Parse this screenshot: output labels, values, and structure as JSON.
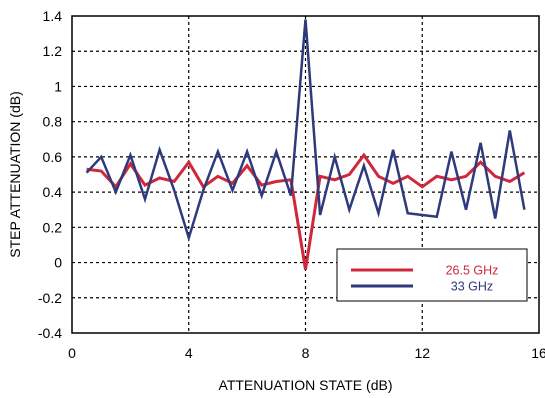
{
  "chart_data": {
    "type": "line",
    "xlabel": "ATTENUATION STATE (dB)",
    "ylabel": "STEP ATTENUATION (dB)",
    "xlim": [
      0,
      16
    ],
    "ylim": [
      -0.4,
      1.4
    ],
    "xticks": [
      0,
      4,
      8,
      12,
      16
    ],
    "yticks": [
      -0.4,
      -0.2,
      0,
      0.2,
      0.4,
      0.6,
      0.8,
      1,
      1.2,
      1.4
    ],
    "grid": true,
    "legend_position": "bottom-right",
    "series": [
      {
        "name": "26.5 GHz",
        "color": "#d0283a",
        "x": [
          0.5,
          1,
          1.5,
          2,
          2.5,
          3,
          3.5,
          4,
          4.5,
          5,
          5.5,
          6,
          6.5,
          7,
          7.5,
          8,
          8.5,
          9,
          9.5,
          10,
          10.5,
          11,
          11.5,
          12,
          12.5,
          13,
          13.5,
          14,
          14.5,
          15,
          15.5
        ],
        "y": [
          0.53,
          0.52,
          0.43,
          0.56,
          0.44,
          0.48,
          0.46,
          0.57,
          0.43,
          0.49,
          0.45,
          0.55,
          0.44,
          0.46,
          0.47,
          -0.04,
          0.49,
          0.47,
          0.5,
          0.61,
          0.49,
          0.45,
          0.49,
          0.43,
          0.49,
          0.47,
          0.49,
          0.57,
          0.49,
          0.46,
          0.51
        ]
      },
      {
        "name": "33 GHz",
        "color": "#2e3a7c",
        "x": [
          0.5,
          1,
          1.5,
          2,
          2.5,
          3,
          3.5,
          4,
          4.5,
          5,
          5.5,
          6,
          6.5,
          7,
          7.5,
          8,
          8.5,
          9,
          9.5,
          10,
          10.5,
          11,
          11.5,
          12,
          12.5,
          13,
          13.5,
          14,
          14.5,
          15,
          15.5
        ],
        "y": [
          0.51,
          0.6,
          0.4,
          0.61,
          0.36,
          0.64,
          0.41,
          0.14,
          0.41,
          0.63,
          0.41,
          0.63,
          0.38,
          0.63,
          0.38,
          1.38,
          0.27,
          0.6,
          0.3,
          0.55,
          0.28,
          0.64,
          0.28,
          0.27,
          0.26,
          0.63,
          0.3,
          0.68,
          0.25,
          0.75,
          0.3
        ]
      }
    ]
  }
}
